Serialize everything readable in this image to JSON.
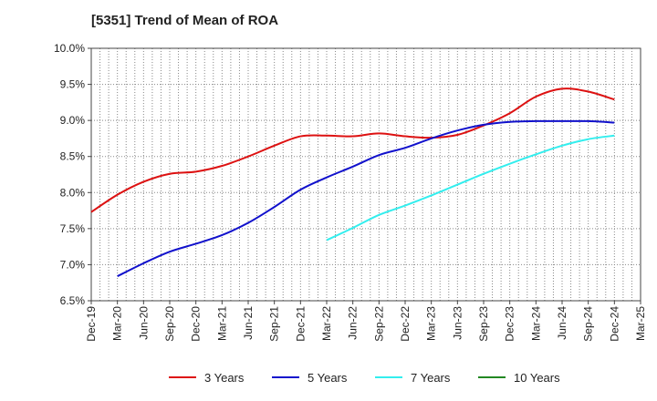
{
  "chart_data": {
    "type": "line",
    "title": "[5351]  Trend of Mean of ROA",
    "xlabel": "",
    "ylabel": "",
    "x": [
      "Dec-19",
      "Mar-20",
      "Jun-20",
      "Sep-20",
      "Dec-20",
      "Mar-21",
      "Jun-21",
      "Sep-21",
      "Dec-21",
      "Mar-22",
      "Jun-22",
      "Sep-22",
      "Dec-22",
      "Mar-23",
      "Jun-23",
      "Sep-23",
      "Dec-23",
      "Mar-24",
      "Jun-24",
      "Sep-24",
      "Dec-24",
      "Mar-25"
    ],
    "ylim": [
      6.5,
      10.0
    ],
    "yticks": [
      "6.5%",
      "7.0%",
      "7.5%",
      "8.0%",
      "8.5%",
      "9.0%",
      "9.5%",
      "10.0%"
    ],
    "grid": true,
    "legend_position": "bottom",
    "series": [
      {
        "name": "3 Years",
        "color": "#dd1111",
        "values": [
          7.73,
          7.97,
          8.15,
          8.26,
          8.29,
          8.37,
          8.5,
          8.65,
          8.78,
          8.79,
          8.78,
          8.82,
          8.78,
          8.76,
          8.8,
          8.93,
          9.1,
          9.33,
          9.44,
          9.4,
          9.29,
          null
        ]
      },
      {
        "name": "5 Years",
        "color": "#1111cc",
        "values": [
          null,
          6.84,
          7.02,
          7.18,
          7.29,
          7.41,
          7.58,
          7.8,
          8.04,
          8.21,
          8.36,
          8.52,
          8.62,
          8.75,
          8.86,
          8.94,
          8.98,
          8.99,
          8.99,
          8.99,
          8.97,
          null
        ]
      },
      {
        "name": "7 Years",
        "color": "#33eeee",
        "values": [
          null,
          null,
          null,
          null,
          null,
          null,
          null,
          null,
          null,
          7.34,
          7.51,
          7.69,
          7.82,
          7.96,
          8.11,
          8.26,
          8.4,
          8.53,
          8.65,
          8.74,
          8.79,
          null
        ]
      },
      {
        "name": "10 Years",
        "color": "#228822",
        "values": [
          null,
          null,
          null,
          null,
          null,
          null,
          null,
          null,
          null,
          null,
          null,
          null,
          null,
          null,
          null,
          null,
          null,
          null,
          null,
          null,
          null,
          null
        ]
      }
    ]
  }
}
